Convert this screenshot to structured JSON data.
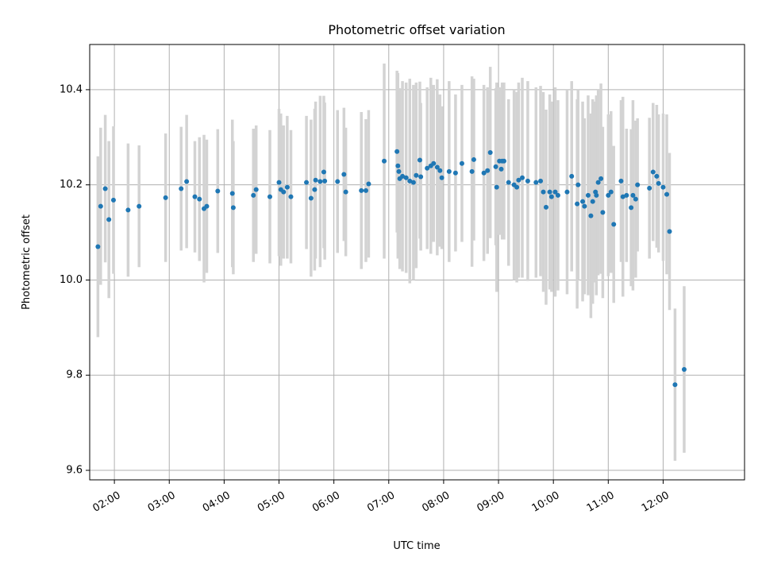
{
  "chart_data": {
    "type": "scatter",
    "title": "Photometric offset variation",
    "xlabel": "UTC time",
    "ylabel": "Photometric offset",
    "xlim": [
      "01:33",
      "13:29"
    ],
    "ylim": [
      9.58,
      10.495
    ],
    "x_ticks": [
      "02:00",
      "03:00",
      "04:00",
      "05:00",
      "06:00",
      "07:00",
      "08:00",
      "09:00",
      "10:00",
      "11:00",
      "12:00"
    ],
    "y_ticks": [
      "9.6",
      "9.8",
      "10.0",
      "10.2",
      "10.4"
    ],
    "grid": true,
    "colors": {
      "points": "#1f77b4",
      "error_bars": "#d3d3d3"
    },
    "series": [
      {
        "points": [
          {
            "x": "01:42",
            "y": 10.07,
            "err": 0.19
          },
          {
            "x": "01:45",
            "y": 10.155,
            "err": 0.165
          },
          {
            "x": "01:50",
            "y": 10.192,
            "err": 0.155
          },
          {
            "x": "01:54",
            "y": 10.127,
            "err": 0.165
          },
          {
            "x": "01:59",
            "y": 10.168,
            "err": 0.155
          },
          {
            "x": "02:15",
            "y": 10.147,
            "err": 0.14
          },
          {
            "x": "02:27",
            "y": 10.155,
            "err": 0.128
          },
          {
            "x": "02:56",
            "y": 10.173,
            "err": 0.135
          },
          {
            "x": "03:13",
            "y": 10.192,
            "err": 0.13
          },
          {
            "x": "03:19",
            "y": 10.207,
            "err": 0.14
          },
          {
            "x": "03:28",
            "y": 10.175,
            "err": 0.117
          },
          {
            "x": "03:33",
            "y": 10.17,
            "err": 0.13
          },
          {
            "x": "03:38",
            "y": 10.15,
            "err": 0.155
          },
          {
            "x": "03:41",
            "y": 10.155,
            "err": 0.14
          },
          {
            "x": "03:53",
            "y": 10.187,
            "err": 0.13
          },
          {
            "x": "04:09",
            "y": 10.182,
            "err": 0.155
          },
          {
            "x": "04:10",
            "y": 10.152,
            "err": 0.14
          },
          {
            "x": "04:32",
            "y": 10.178,
            "err": 0.14
          },
          {
            "x": "04:35",
            "y": 10.19,
            "err": 0.135
          },
          {
            "x": "04:50",
            "y": 10.175,
            "err": 0.14
          },
          {
            "x": "05:00",
            "y": 10.205,
            "err": 0.155
          },
          {
            "x": "05:02",
            "y": 10.19,
            "err": 0.16
          },
          {
            "x": "05:05",
            "y": 10.185,
            "err": 0.14
          },
          {
            "x": "05:09",
            "y": 10.195,
            "err": 0.15
          },
          {
            "x": "05:13",
            "y": 10.175,
            "err": 0.14
          },
          {
            "x": "05:30",
            "y": 10.205,
            "err": 0.14
          },
          {
            "x": "05:35",
            "y": 10.172,
            "err": 0.165
          },
          {
            "x": "05:39",
            "y": 10.19,
            "err": 0.17
          },
          {
            "x": "05:40",
            "y": 10.21,
            "err": 0.165
          },
          {
            "x": "05:45",
            "y": 10.207,
            "err": 0.18
          },
          {
            "x": "05:49",
            "y": 10.227,
            "err": 0.16
          },
          {
            "x": "05:50",
            "y": 10.208,
            "err": 0.165
          },
          {
            "x": "06:04",
            "y": 10.207,
            "err": 0.15
          },
          {
            "x": "06:11",
            "y": 10.222,
            "err": 0.14
          },
          {
            "x": "06:13",
            "y": 10.185,
            "err": 0.135
          },
          {
            "x": "06:30",
            "y": 10.188,
            "err": 0.165
          },
          {
            "x": "06:35",
            "y": 10.188,
            "err": 0.15
          },
          {
            "x": "06:38",
            "y": 10.202,
            "err": 0.155
          },
          {
            "x": "06:55",
            "y": 10.25,
            "err": 0.205
          },
          {
            "x": "07:09",
            "y": 10.27,
            "err": 0.17
          },
          {
            "x": "07:10",
            "y": 10.24,
            "err": 0.195
          },
          {
            "x": "07:11",
            "y": 10.228,
            "err": 0.175
          },
          {
            "x": "07:12",
            "y": 10.213,
            "err": 0.19
          },
          {
            "x": "07:15",
            "y": 10.218,
            "err": 0.2
          },
          {
            "x": "07:19",
            "y": 10.215,
            "err": 0.2
          },
          {
            "x": "07:23",
            "y": 10.208,
            "err": 0.215
          },
          {
            "x": "07:27",
            "y": 10.205,
            "err": 0.205
          },
          {
            "x": "07:30",
            "y": 10.22,
            "err": 0.195
          },
          {
            "x": "07:34",
            "y": 10.252,
            "err": 0.165
          },
          {
            "x": "07:35",
            "y": 10.217,
            "err": 0.155
          },
          {
            "x": "07:42",
            "y": 10.235,
            "err": 0.17
          },
          {
            "x": "07:46",
            "y": 10.24,
            "err": 0.185
          },
          {
            "x": "07:49",
            "y": 10.245,
            "err": 0.165
          },
          {
            "x": "07:53",
            "y": 10.237,
            "err": 0.185
          },
          {
            "x": "07:56",
            "y": 10.23,
            "err": 0.16
          },
          {
            "x": "07:58",
            "y": 10.215,
            "err": 0.15
          },
          {
            "x": "08:06",
            "y": 10.228,
            "err": 0.19
          },
          {
            "x": "08:13",
            "y": 10.225,
            "err": 0.165
          },
          {
            "x": "08:20",
            "y": 10.245,
            "err": 0.165
          },
          {
            "x": "08:31",
            "y": 10.228,
            "err": 0.2
          },
          {
            "x": "08:33",
            "y": 10.253,
            "err": 0.17
          },
          {
            "x": "08:44",
            "y": 10.225,
            "err": 0.185
          },
          {
            "x": "08:48",
            "y": 10.23,
            "err": 0.175
          },
          {
            "x": "08:51",
            "y": 10.268,
            "err": 0.18
          },
          {
            "x": "08:57",
            "y": 10.238,
            "err": 0.165
          },
          {
            "x": "08:58",
            "y": 10.195,
            "err": 0.22
          },
          {
            "x": "09:01",
            "y": 10.25,
            "err": 0.155
          },
          {
            "x": "09:03",
            "y": 10.233,
            "err": 0.135
          },
          {
            "x": "09:04",
            "y": 10.25,
            "err": 0.165
          },
          {
            "x": "09:06",
            "y": 10.25,
            "err": 0.165
          },
          {
            "x": "09:11",
            "y": 10.205,
            "err": 0.175
          },
          {
            "x": "09:17",
            "y": 10.2,
            "err": 0.2
          },
          {
            "x": "09:20",
            "y": 10.195,
            "err": 0.2
          },
          {
            "x": "09:22",
            "y": 10.21,
            "err": 0.205
          },
          {
            "x": "09:26",
            "y": 10.215,
            "err": 0.21
          },
          {
            "x": "09:32",
            "y": 10.208,
            "err": 0.21
          },
          {
            "x": "09:41",
            "y": 10.205,
            "err": 0.2
          },
          {
            "x": "09:46",
            "y": 10.208,
            "err": 0.2
          },
          {
            "x": "09:49",
            "y": 10.185,
            "err": 0.21
          },
          {
            "x": "09:52",
            "y": 10.153,
            "err": 0.205
          },
          {
            "x": "09:56",
            "y": 10.185,
            "err": 0.205
          },
          {
            "x": "09:58",
            "y": 10.175,
            "err": 0.2
          },
          {
            "x": "10:02",
            "y": 10.185,
            "err": 0.22
          },
          {
            "x": "10:05",
            "y": 10.178,
            "err": 0.2
          },
          {
            "x": "10:15",
            "y": 10.185,
            "err": 0.215
          },
          {
            "x": "10:20",
            "y": 10.218,
            "err": 0.2
          },
          {
            "x": "10:26",
            "y": 10.16,
            "err": 0.22
          },
          {
            "x": "10:27",
            "y": 10.2,
            "err": 0.2
          },
          {
            "x": "10:32",
            "y": 10.165,
            "err": 0.21
          },
          {
            "x": "10:34",
            "y": 10.155,
            "err": 0.185
          },
          {
            "x": "10:38",
            "y": 10.178,
            "err": 0.21
          },
          {
            "x": "10:41",
            "y": 10.135,
            "err": 0.215
          },
          {
            "x": "10:43",
            "y": 10.165,
            "err": 0.215
          },
          {
            "x": "10:46",
            "y": 10.185,
            "err": 0.19
          },
          {
            "x": "10:47",
            "y": 10.178,
            "err": 0.21
          },
          {
            "x": "10:49",
            "y": 10.205,
            "err": 0.195
          },
          {
            "x": "10:52",
            "y": 10.213,
            "err": 0.2
          },
          {
            "x": "10:54",
            "y": 10.142,
            "err": 0.18
          },
          {
            "x": "11:00",
            "y": 10.178,
            "err": 0.17
          },
          {
            "x": "11:03",
            "y": 10.185,
            "err": 0.17
          },
          {
            "x": "11:06",
            "y": 10.117,
            "err": 0.165
          },
          {
            "x": "11:14",
            "y": 10.208,
            "err": 0.17
          },
          {
            "x": "11:16",
            "y": 10.175,
            "err": 0.21
          },
          {
            "x": "11:20",
            "y": 10.178,
            "err": 0.14
          },
          {
            "x": "11:25",
            "y": 10.152,
            "err": 0.165
          },
          {
            "x": "11:27",
            "y": 10.178,
            "err": 0.2
          },
          {
            "x": "11:30",
            "y": 10.17,
            "err": 0.165
          },
          {
            "x": "11:32",
            "y": 10.2,
            "err": 0.14
          },
          {
            "x": "11:45",
            "y": 10.193,
            "err": 0.148
          },
          {
            "x": "11:49",
            "y": 10.227,
            "err": 0.145
          },
          {
            "x": "11:53",
            "y": 10.218,
            "err": 0.15
          },
          {
            "x": "11:55",
            "y": 10.203,
            "err": 0.145
          },
          {
            "x": "12:00",
            "y": 10.195,
            "err": 0.155
          },
          {
            "x": "12:04",
            "y": 10.18,
            "err": 0.168
          },
          {
            "x": "12:07",
            "y": 10.102,
            "err": 0.165
          },
          {
            "x": "12:13",
            "y": 9.78,
            "err": 0.16
          },
          {
            "x": "12:23",
            "y": 9.812,
            "err": 0.175
          }
        ]
      }
    ]
  }
}
